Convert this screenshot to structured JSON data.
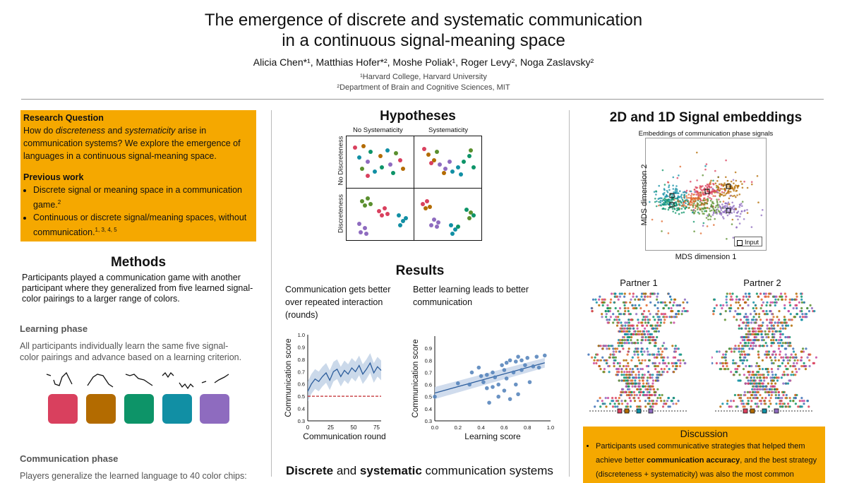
{
  "header": {
    "title_line1": "The emergence of discrete and systematic communication",
    "title_line2": "in a continuous signal-meaning space",
    "authors": "Alicia Chen*¹, Matthias Hofer*², Moshe Poliak¹, Roger Levy², Noga Zaslavsky²",
    "affiliation1": "¹Harvard College, Harvard University",
    "affiliation2": "²Department of Brain and Cognitive Sciences, MIT"
  },
  "left": {
    "rq_heading": "Research Question",
    "rq_pre": "How do ",
    "rq_em1": "discreteness",
    "rq_mid": " and ",
    "rq_em2": "systematicity",
    "rq_post": " arise in communication systems? We explore the emergence of languages in a continuous signal-meaning space.",
    "pw_heading": "Previous work",
    "pw_item1": "Discrete signal or meaning space in a communication game.",
    "pw_item1_sup": "2",
    "pw_item2": "Continuous or discrete signal/meaning spaces, without communication.",
    "pw_item2_sup": "1, 3, 4, 5",
    "methods_heading": "Methods",
    "methods_text": "Participants played a communication game with another participant where they generalized from five learned signal-color pairings to a larger range of colors.",
    "learning_heading": "Learning phase",
    "learning_text": "All participants individually learn the same five signal-color pairings and advance based on a learning criterion.",
    "swatch_colors": [
      "#d9405e",
      "#b36b00",
      "#0d9468",
      "#118fa4",
      "#8e6bbf"
    ],
    "comm_heading": "Communication phase",
    "comm_text": "Players generalize the learned language to 40 color chips:"
  },
  "middle": {
    "hyp_heading": "Hypotheses",
    "col1": "No Systematicity",
    "col2": "Systematicity",
    "row1": "No Discreteness",
    "row2": "Discreteness",
    "results_heading": "Results",
    "res1_text": "Communication gets better over repeated interaction (rounds)",
    "res2_text": "Better learning leads to better communication",
    "bottom_pre": "Discrete",
    "bottom_mid": " and ",
    "bottom_bold2": "systematic",
    "bottom_post": " communication systems"
  },
  "right": {
    "emb_heading": "2D and 1D Signal embeddings",
    "emb_chart_title": "Embeddings of communication phase signals",
    "emb_xlabel": "MDS dimension 1",
    "emb_ylabel": "MDS dimension 2",
    "emb_legend": "Input",
    "partner1": "Partner 1",
    "partner2": "Partner 2",
    "disc_heading": "Discussion",
    "disc_pre": "Participants used communicative strategies that helped them achieve better ",
    "disc_bold": "communication accuracy",
    "disc_post": ", and the best strategy (discreteness + systematicity) was also the most common"
  },
  "chart_data": [
    {
      "type": "line",
      "title": "",
      "xlabel": "Communication round",
      "ylabel": "Communication score",
      "xlim": [
        0,
        80
      ],
      "ylim": [
        0.3,
        1.0
      ],
      "xticks": [
        0,
        25,
        50,
        75
      ],
      "yticks": [
        0.3,
        0.4,
        0.5,
        0.6,
        0.7,
        0.8,
        0.9,
        1.0
      ],
      "baseline": 0.5,
      "x": [
        0,
        4,
        8,
        12,
        16,
        20,
        24,
        28,
        32,
        36,
        40,
        44,
        48,
        52,
        56,
        60,
        64,
        68,
        72,
        76,
        80
      ],
      "values": [
        0.54,
        0.6,
        0.64,
        0.62,
        0.66,
        0.69,
        0.63,
        0.7,
        0.72,
        0.66,
        0.71,
        0.68,
        0.73,
        0.7,
        0.75,
        0.68,
        0.72,
        0.77,
        0.69,
        0.74,
        0.71
      ]
    },
    {
      "type": "scatter",
      "title": "",
      "xlabel": "Learning score",
      "ylabel": "Communication score",
      "xlim": [
        0.0,
        1.0
      ],
      "ylim": [
        0.3,
        1.0
      ],
      "xticks": [
        0.0,
        0.2,
        0.4,
        0.6,
        0.8,
        1.0
      ],
      "yticks": [
        0.3,
        0.4,
        0.5,
        0.6,
        0.7,
        0.8,
        0.9
      ],
      "fit": [
        [
          0.0,
          0.53
        ],
        [
          0.95,
          0.78
        ]
      ],
      "points": [
        [
          0.0,
          0.5
        ],
        [
          0.2,
          0.61
        ],
        [
          0.3,
          0.6
        ],
        [
          0.32,
          0.7
        ],
        [
          0.38,
          0.74
        ],
        [
          0.4,
          0.67
        ],
        [
          0.42,
          0.62
        ],
        [
          0.45,
          0.57
        ],
        [
          0.47,
          0.45
        ],
        [
          0.5,
          0.7
        ],
        [
          0.5,
          0.58
        ],
        [
          0.52,
          0.66
        ],
        [
          0.55,
          0.6
        ],
        [
          0.55,
          0.5
        ],
        [
          0.58,
          0.76
        ],
        [
          0.6,
          0.72
        ],
        [
          0.6,
          0.55
        ],
        [
          0.62,
          0.65
        ],
        [
          0.65,
          0.8
        ],
        [
          0.65,
          0.48
        ],
        [
          0.68,
          0.7
        ],
        [
          0.7,
          0.79
        ],
        [
          0.7,
          0.6
        ],
        [
          0.72,
          0.83
        ],
        [
          0.72,
          0.52
        ],
        [
          0.75,
          0.72
        ],
        [
          0.75,
          0.8
        ],
        [
          0.78,
          0.76
        ],
        [
          0.8,
          0.82
        ],
        [
          0.82,
          0.62
        ],
        [
          0.85,
          0.75
        ],
        [
          0.88,
          0.83
        ],
        [
          0.9,
          0.74
        ],
        [
          0.95,
          0.84
        ],
        [
          0.45,
          0.68
        ],
        [
          0.62,
          0.78
        ]
      ]
    }
  ]
}
